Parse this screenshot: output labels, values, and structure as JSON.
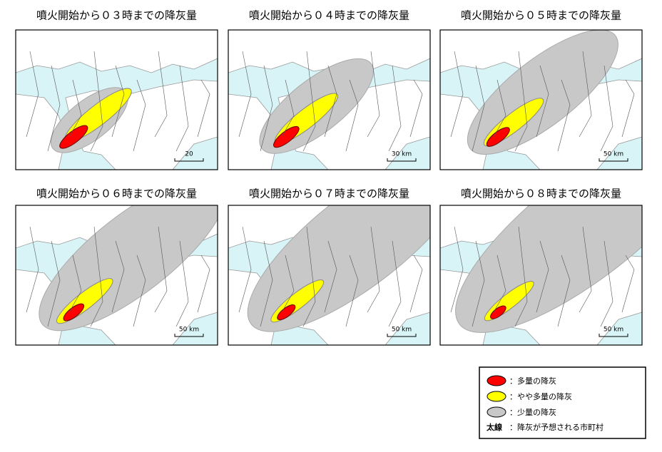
{
  "panels": [
    {
      "title": "噴火開始から０３時までの降灰量",
      "scale": "20"
    },
    {
      "title": "噴火開始から０４時までの降灰量",
      "scale": "30 km"
    },
    {
      "title": "噴火開始から０５時までの降灰量",
      "scale": "50 km"
    },
    {
      "title": "噴火開始から０６時までの降灰量",
      "scale": "50 km"
    },
    {
      "title": "噴火開始から０７時までの降灰量",
      "scale": "50 km"
    },
    {
      "title": "噴火開始から０８時までの降灰量",
      "scale": "50 km"
    }
  ],
  "legend": {
    "items": [
      {
        "label": "：多量の降灰"
      },
      {
        "label": "：やや多量の降灰"
      },
      {
        "label": "：少量の降灰"
      }
    ],
    "thick_line": {
      "symbol": "太線",
      "label": "：降灰が予想される市町村"
    }
  }
}
